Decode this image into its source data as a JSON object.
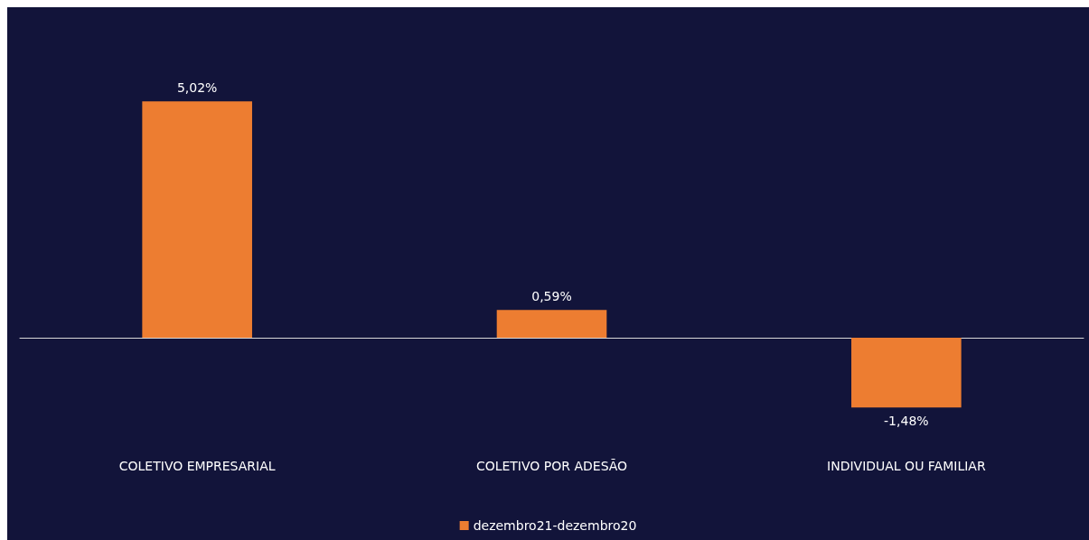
{
  "chart_data": {
    "type": "bar",
    "categories": [
      "COLETIVO EMPRESARIAL",
      "COLETIVO POR ADESÃO",
      "INDIVIDUAL OU FAMILIAR"
    ],
    "series": [
      {
        "name": "dezembro21-dezembro20",
        "color": "#ed7d31",
        "values": [
          5.02,
          0.59,
          -1.48
        ],
        "value_labels": [
          "5,02%",
          "0,59%",
          "-1,48%"
        ]
      }
    ],
    "legend": "bottom"
  }
}
